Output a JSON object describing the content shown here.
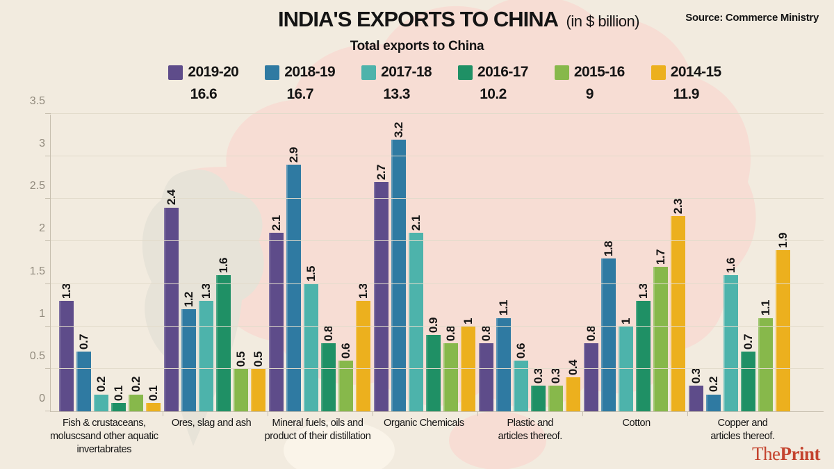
{
  "header": {
    "title": "INDIA'S EXPORTS TO CHINA",
    "title_suffix": "(in $ billion)",
    "subtitle": "Total exports to China",
    "source": "Source: Commerce Ministry"
  },
  "chart_data": {
    "type": "bar",
    "title": "INDIA'S EXPORTS TO CHINA (in $ billion)",
    "subtitle": "Total exports to China",
    "categories": [
      "Fish & crustaceans,\nmoluscsand other aquatic\ninvertabrates",
      "Ores, slag and ash",
      "Mineral fuels, oils and\nproduct of their distillation",
      "Organic Chemicals",
      "Plastic and\narticles thereof.",
      "Cotton",
      "Copper and\narticles thereof."
    ],
    "series": [
      {
        "name": "2019-20",
        "total": 16.6,
        "color": "#5e4c8a",
        "values": [
          1.3,
          2.4,
          2.1,
          2.7,
          0.8,
          0.8,
          0.3
        ]
      },
      {
        "name": "2018-19",
        "total": 16.7,
        "color": "#2f7aa2",
        "values": [
          0.7,
          1.2,
          2.9,
          3.2,
          1.1,
          1.8,
          0.2
        ]
      },
      {
        "name": "2017-18",
        "total": 13.3,
        "color": "#4db3ab",
        "values": [
          0.2,
          1.3,
          1.5,
          2.1,
          0.6,
          1,
          1.6
        ]
      },
      {
        "name": "2016-17",
        "total": 10.2,
        "color": "#1f9065",
        "values": [
          0.1,
          1.6,
          0.8,
          0.9,
          0.3,
          1.3,
          0.7
        ]
      },
      {
        "name": "2015-16",
        "total": 9,
        "color": "#87b84b",
        "values": [
          0.2,
          0.5,
          0.6,
          0.8,
          0.3,
          1.7,
          1.1
        ]
      },
      {
        "name": "2014-15",
        "total": 11.9,
        "color": "#ecb01e",
        "values": [
          0.1,
          0.5,
          1.3,
          1,
          0.4,
          2.3,
          1.9
        ]
      }
    ],
    "ylim": [
      0,
      3.5
    ],
    "yticks": [
      0,
      0.5,
      1,
      1.5,
      2,
      2.5,
      3,
      3.5
    ],
    "grid": true,
    "legend_position": "top",
    "value_labels": "rotated-90"
  },
  "branding": {
    "the": "The",
    "print": "Print",
    "color": "#c4432e"
  },
  "theme": {
    "background": "#f2ebdf",
    "map_china": "#f7ddd4",
    "map_india": "#e7e3d8",
    "grid": "#e2dbcb",
    "axis": "#c6beae",
    "tick_text": "#918a7d",
    "text": "#141414"
  }
}
